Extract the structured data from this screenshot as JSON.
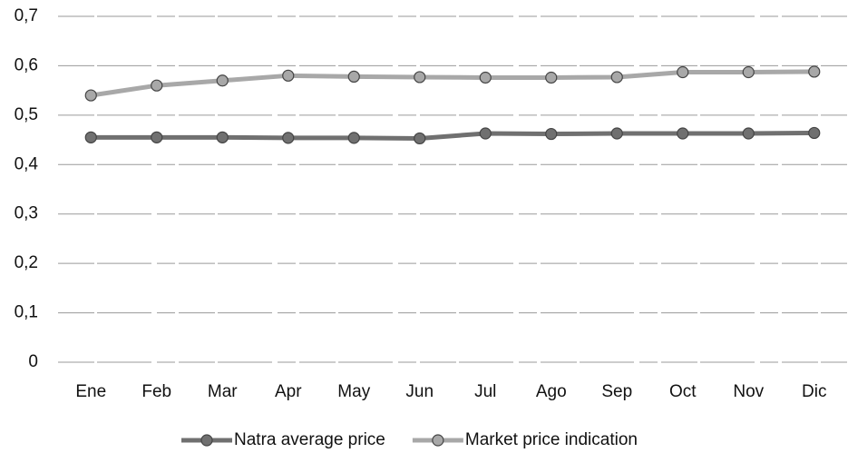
{
  "chart_data": {
    "type": "line",
    "categories": [
      "Ene",
      "Feb",
      "Mar",
      "Apr",
      "May",
      "Jun",
      "Jul",
      "Ago",
      "Sep",
      "Oct",
      "Nov",
      "Dic"
    ],
    "series": [
      {
        "name": "Natra average price",
        "color": "#707070",
        "values": [
          0.455,
          0.455,
          0.455,
          0.454,
          0.454,
          0.453,
          0.463,
          0.462,
          0.463,
          0.463,
          0.463,
          0.464
        ]
      },
      {
        "name": "Market price indication",
        "color": "#a8a8a8",
        "values": [
          0.54,
          0.56,
          0.57,
          0.58,
          0.578,
          0.577,
          0.576,
          0.576,
          0.577,
          0.587,
          0.587,
          0.588
        ]
      }
    ],
    "ylim": [
      0,
      0.7
    ],
    "yticks": [
      0,
      {
        "value": 0.1,
        "label": "0,1"
      },
      {
        "value": 0.2,
        "label": "0,2"
      },
      {
        "value": 0.3,
        "label": "0,3"
      },
      {
        "value": 0.4,
        "label": "0,4"
      },
      {
        "value": 0.5,
        "label": "0,5"
      },
      {
        "value": 0.6,
        "label": "0,6"
      },
      {
        "value": 0.7,
        "label": "0,7"
      }
    ],
    "grid": true
  }
}
